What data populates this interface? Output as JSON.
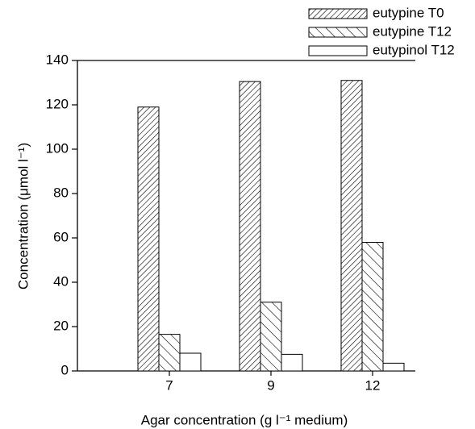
{
  "chart_data": {
    "type": "bar",
    "xlabel": "Agar concentration (g l⁻¹ medium)",
    "ylabel": "Concentration (μmol l⁻¹)",
    "categories": [
      "7",
      "9",
      "12"
    ],
    "series": [
      {
        "name": "eutypine T0",
        "color": "#000000",
        "hatch": "//",
        "values": [
          119,
          130.5,
          131
        ]
      },
      {
        "name": "eutypine T12",
        "color": "#000000",
        "hatch": "\\\\",
        "values": [
          16.5,
          31,
          58
        ]
      },
      {
        "name": "eutypinol T12",
        "color": "#000000",
        "values": [
          8,
          7.5,
          3.5
        ]
      }
    ],
    "ylim": [
      0,
      140
    ],
    "yticks": [
      0,
      20,
      40,
      60,
      80,
      100,
      120,
      140
    ],
    "grid": false,
    "legend": "upper right"
  }
}
